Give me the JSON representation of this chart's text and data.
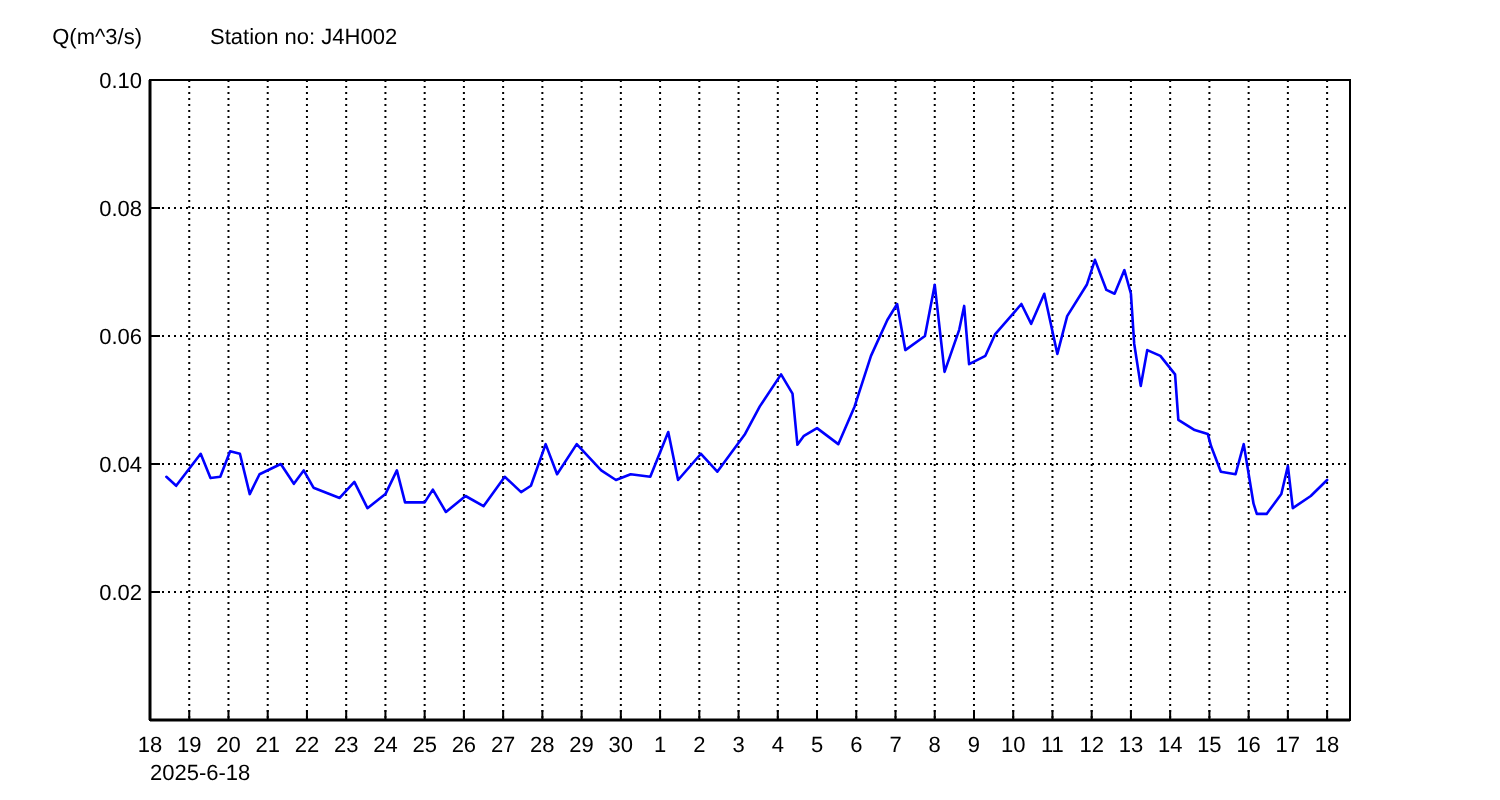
{
  "chart_data": {
    "type": "line",
    "title": "Station no: J4H002",
    "ylabel": "Q(m^3/s)",
    "annotations": [
      "2025-6-18"
    ],
    "xlim": [
      "2025-06-18",
      "2025-07-18T14:00"
    ],
    "xticks": [
      {
        "value": "2025-06-18",
        "label": "18"
      },
      {
        "value": "2025-06-19",
        "label": "19"
      },
      {
        "value": "2025-06-20",
        "label": "20"
      },
      {
        "value": "2025-06-21",
        "label": "21"
      },
      {
        "value": "2025-06-22",
        "label": "22"
      },
      {
        "value": "2025-06-23",
        "label": "23"
      },
      {
        "value": "2025-06-24",
        "label": "24"
      },
      {
        "value": "2025-06-25",
        "label": "25"
      },
      {
        "value": "2025-06-26",
        "label": "26"
      },
      {
        "value": "2025-06-27",
        "label": "27"
      },
      {
        "value": "2025-06-28",
        "label": "28"
      },
      {
        "value": "2025-06-29",
        "label": "29"
      },
      {
        "value": "2025-06-30",
        "label": "30"
      },
      {
        "value": "2025-07-01",
        "label": "1"
      },
      {
        "value": "2025-07-02",
        "label": "2"
      },
      {
        "value": "2025-07-03",
        "label": "3"
      },
      {
        "value": "2025-07-04",
        "label": "4"
      },
      {
        "value": "2025-07-05",
        "label": "5"
      },
      {
        "value": "2025-07-06",
        "label": "6"
      },
      {
        "value": "2025-07-07",
        "label": "7"
      },
      {
        "value": "2025-07-08",
        "label": "8"
      },
      {
        "value": "2025-07-09",
        "label": "9"
      },
      {
        "value": "2025-07-10",
        "label": "10"
      },
      {
        "value": "2025-07-11",
        "label": "11"
      },
      {
        "value": "2025-07-12",
        "label": "12"
      },
      {
        "value": "2025-07-13",
        "label": "13"
      },
      {
        "value": "2025-07-14",
        "label": "14"
      },
      {
        "value": "2025-07-15",
        "label": "15"
      },
      {
        "value": "2025-07-16",
        "label": "16"
      },
      {
        "value": "2025-07-17",
        "label": "17"
      },
      {
        "value": "2025-07-18",
        "label": "18"
      }
    ],
    "ylim": [
      0,
      0.1
    ],
    "yticks": [
      0.02,
      0.04,
      0.06,
      0.08,
      {
        "value": 0.1,
        "label": "0.10"
      }
    ],
    "grid": true,
    "line_style": "solid",
    "marker": "none",
    "x": [
      "2025-06-18T10:00",
      "2025-06-18T16:00",
      "2025-06-19T07:00",
      "2025-06-19T13:00",
      "2025-06-19T19:00",
      "2025-06-20T01:00",
      "2025-06-20T07:00",
      "2025-06-20T13:00",
      "2025-06-20T19:00",
      "2025-06-21T08:00",
      "2025-06-21T16:00",
      "2025-06-21T22:00",
      "2025-06-22T04:00",
      "2025-06-22T20:00",
      "2025-06-23T05:00",
      "2025-06-23T13:00",
      "2025-06-24T00:00",
      "2025-06-24T07:00",
      "2025-06-24T12:00",
      "2025-06-25T00:00",
      "2025-06-25T05:00",
      "2025-06-25T13:00",
      "2025-06-26T01:00",
      "2025-06-26T12:00",
      "2025-06-27T01:00",
      "2025-06-27T11:00",
      "2025-06-27T17:00",
      "2025-06-28T02:00",
      "2025-06-28T09:00",
      "2025-06-28T21:00",
      "2025-06-29T12:00",
      "2025-06-29T21:00",
      "2025-06-30T06:00",
      "2025-06-30T18:00",
      "2025-07-01T05:00",
      "2025-07-01T11:00",
      "2025-07-02T01:00",
      "2025-07-02T11:00",
      "2025-07-03T04:00",
      "2025-07-03T13:00",
      "2025-07-04T02:00",
      "2025-07-04T09:00",
      "2025-07-04T12:00",
      "2025-07-04T16:00",
      "2025-07-05T00:00",
      "2025-07-05T13:00",
      "2025-07-05T23:00",
      "2025-07-06T09:00",
      "2025-07-06T19:00",
      "2025-07-07T01:00",
      "2025-07-07T06:00",
      "2025-07-07T18:00",
      "2025-07-08T00:00",
      "2025-07-08T06:00",
      "2025-07-08T15:00",
      "2025-07-08T18:00",
      "2025-07-08T21:00",
      "2025-07-09T07:00",
      "2025-07-09T13:00",
      "2025-07-10T05:00",
      "2025-07-10T11:00",
      "2025-07-10T19:00",
      "2025-07-11T03:00",
      "2025-07-11T09:00",
      "2025-07-11T21:00",
      "2025-07-12T02:00",
      "2025-07-12T09:00",
      "2025-07-12T14:00",
      "2025-07-12T20:00",
      "2025-07-13T00:00",
      "2025-07-13T02:00",
      "2025-07-13T06:00",
      "2025-07-13T10:00",
      "2025-07-13T18:00",
      "2025-07-14T03:00",
      "2025-07-14T05:00",
      "2025-07-14T15:00",
      "2025-07-14T23:00",
      "2025-07-15T01:00",
      "2025-07-15T07:00",
      "2025-07-15T16:00",
      "2025-07-15T21:00",
      "2025-07-16T03:00",
      "2025-07-16T05:00",
      "2025-07-16T11:00",
      "2025-07-16T20:00",
      "2025-07-17T00:00",
      "2025-07-17T03:00",
      "2025-07-17T14:00",
      "2025-07-18T00:00"
    ],
    "series": [
      {
        "color": "#0000ff",
        "values": [
          0.038,
          0.0366,
          0.0416,
          0.0378,
          0.038,
          0.042,
          0.0416,
          0.0353,
          0.0384,
          0.04,
          0.0369,
          0.039,
          0.0363,
          0.0347,
          0.0372,
          0.0331,
          0.0353,
          0.039,
          0.034,
          0.034,
          0.036,
          0.0325,
          0.035,
          0.0334,
          0.038,
          0.0356,
          0.0366,
          0.0431,
          0.0384,
          0.0431,
          0.039,
          0.0375,
          0.0384,
          0.038,
          0.045,
          0.0375,
          0.0416,
          0.0388,
          0.0447,
          0.049,
          0.054,
          0.051,
          0.043,
          0.0444,
          0.0456,
          0.0431,
          0.049,
          0.0569,
          0.0625,
          0.065,
          0.0578,
          0.06,
          0.068,
          0.0544,
          0.061,
          0.0647,
          0.0556,
          0.0569,
          0.0603,
          0.065,
          0.0619,
          0.0666,
          0.0572,
          0.0631,
          0.068,
          0.0719,
          0.0672,
          0.0666,
          0.0703,
          0.0666,
          0.0588,
          0.0522,
          0.0578,
          0.0569,
          0.054,
          0.0469,
          0.0453,
          0.0447,
          0.0428,
          0.0388,
          0.0384,
          0.0431,
          0.0338,
          0.0322,
          0.0322,
          0.0353,
          0.0397,
          0.0331,
          0.035,
          0.0375
        ]
      }
    ]
  }
}
